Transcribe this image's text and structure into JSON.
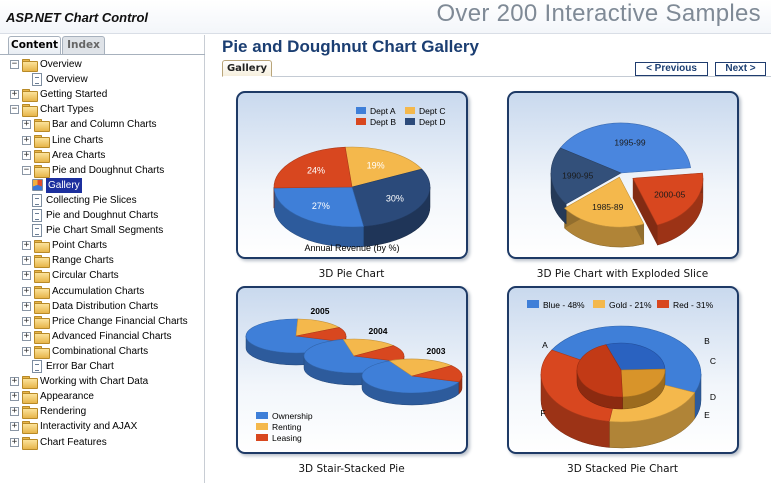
{
  "header": {
    "app_title": "ASP.NET Chart Control",
    "banner": "Over 200 Interactive Samples"
  },
  "left_tabs": {
    "content": "Content",
    "index": "Index"
  },
  "tree": [
    {
      "label": "Overview",
      "depth": 0,
      "kind": "folder",
      "toggle": "−"
    },
    {
      "label": "Overview",
      "depth": 1,
      "kind": "page"
    },
    {
      "label": "Getting Started",
      "depth": 0,
      "kind": "folder",
      "toggle": "+"
    },
    {
      "label": "Chart Types",
      "depth": 0,
      "kind": "folder",
      "toggle": "−"
    },
    {
      "label": "Bar and Column Charts",
      "depth": 1,
      "kind": "folder",
      "toggle": "+"
    },
    {
      "label": "Line Charts",
      "depth": 1,
      "kind": "folder",
      "toggle": "+"
    },
    {
      "label": "Area Charts",
      "depth": 1,
      "kind": "folder",
      "toggle": "+"
    },
    {
      "label": "Pie and Doughnut Charts",
      "depth": 1,
      "kind": "folder",
      "toggle": "−"
    },
    {
      "label": "Gallery",
      "depth": 2,
      "kind": "gallery",
      "selected": true
    },
    {
      "label": "Collecting Pie Slices",
      "depth": 2,
      "kind": "page"
    },
    {
      "label": "Pie and Doughnut Charts",
      "depth": 2,
      "kind": "page"
    },
    {
      "label": "Pie Chart Small Segments",
      "depth": 2,
      "kind": "page"
    },
    {
      "label": "Point Charts",
      "depth": 1,
      "kind": "folder",
      "toggle": "+"
    },
    {
      "label": "Range Charts",
      "depth": 1,
      "kind": "folder",
      "toggle": "+"
    },
    {
      "label": "Circular Charts",
      "depth": 1,
      "kind": "folder",
      "toggle": "+"
    },
    {
      "label": "Accumulation Charts",
      "depth": 1,
      "kind": "folder",
      "toggle": "+"
    },
    {
      "label": "Data Distribution Charts",
      "depth": 1,
      "kind": "folder",
      "toggle": "+"
    },
    {
      "label": "Price Change Financial Charts",
      "depth": 1,
      "kind": "folder",
      "toggle": "+"
    },
    {
      "label": "Advanced Financial Charts",
      "depth": 1,
      "kind": "folder",
      "toggle": "+"
    },
    {
      "label": "Combinational Charts",
      "depth": 1,
      "kind": "folder",
      "toggle": "+"
    },
    {
      "label": "Error Bar Chart",
      "depth": 1,
      "kind": "page"
    },
    {
      "label": "Working with Chart Data",
      "depth": 0,
      "kind": "folder",
      "toggle": "+"
    },
    {
      "label": "Appearance",
      "depth": 0,
      "kind": "folder",
      "toggle": "+"
    },
    {
      "label": "Rendering",
      "depth": 0,
      "kind": "folder",
      "toggle": "+"
    },
    {
      "label": "Interactivity and AJAX",
      "depth": 0,
      "kind": "folder",
      "toggle": "+"
    },
    {
      "label": "Chart Features",
      "depth": 0,
      "kind": "folder",
      "toggle": "+"
    }
  ],
  "main": {
    "title": "Pie and Doughnut Chart Gallery",
    "tab": "Gallery",
    "prev_label": "< Previous",
    "next_label": "Next >"
  },
  "gallery": [
    {
      "caption": "3D Pie Chart"
    },
    {
      "caption": "3D Pie Chart with Exploded Slice"
    },
    {
      "caption": "3D Stair-Stacked Pie"
    },
    {
      "caption": "3D Stacked Pie Chart"
    }
  ],
  "chart_data": [
    {
      "type": "pie",
      "title": "Annual Revenue (by %)",
      "legend": [
        "Dept A",
        "Dept B",
        "Dept C",
        "Dept D"
      ],
      "legend_placement": "top",
      "categories": [
        "Dept A",
        "Dept B",
        "Dept C",
        "Dept D"
      ],
      "values": [
        27,
        24,
        19,
        30
      ],
      "labels": [
        "27%",
        "24%",
        "19%",
        "30%"
      ],
      "colors": {
        "Dept A": "#3f7fd8",
        "Dept B": "#d8471f",
        "Dept C": "#f4b84c",
        "Dept D": "#2b4a7a"
      }
    },
    {
      "type": "pie",
      "categories": [
        "1995-99",
        "2000-05",
        "1985-89",
        "1990-95"
      ],
      "values": [
        40,
        21,
        20,
        19
      ],
      "exploded": [
        "2000-05",
        "1985-89"
      ],
      "colors": {
        "1995-99": "#4a86de",
        "2000-05": "#d8471f",
        "1985-89": "#f4b84c",
        "1990-95": "#33507a"
      }
    },
    {
      "type": "pie",
      "series": [
        {
          "name": "2005"
        },
        {
          "name": "2004"
        },
        {
          "name": "2003"
        }
      ],
      "legend": [
        "Ownership",
        "Renting",
        "Leasing"
      ],
      "legend_placement": "bottom-left",
      "colors": {
        "Ownership": "#3f7fd8",
        "Renting": "#f4b84c",
        "Leasing": "#d8471f"
      }
    },
    {
      "type": "pie",
      "legend": [
        "Blue - 48%",
        "Gold - 21%",
        "Red - 31%"
      ],
      "legend_placement": "top",
      "categories": [
        "Blue",
        "Gold",
        "Red"
      ],
      "values": [
        48,
        21,
        31
      ],
      "point_labels": [
        "A",
        "B",
        "C",
        "D",
        "E",
        "F"
      ],
      "colors": {
        "Blue": "#3f7fd8",
        "Gold": "#f4b84c",
        "Red": "#d8471f"
      }
    }
  ]
}
